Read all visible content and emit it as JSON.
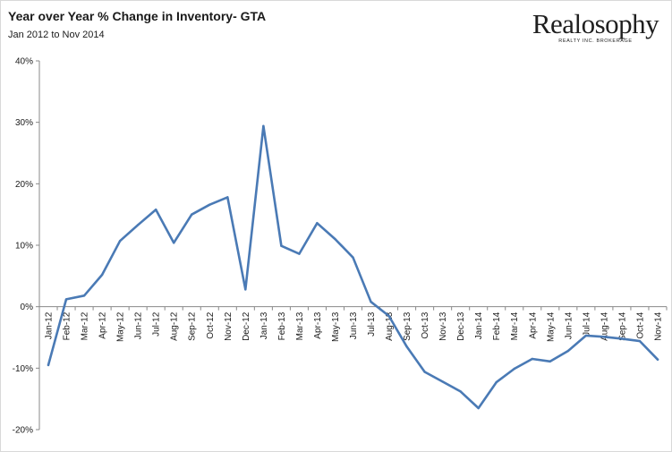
{
  "header": {
    "title": "Year over Year % Change in Inventory- GTA",
    "subtitle": "Jan 2012 to Nov 2014"
  },
  "logo": {
    "word": "Realosophy",
    "tagline": "REALTY INC. BROKERAGE"
  },
  "colors": {
    "line": "#4a7ab5",
    "axis": "#888888",
    "tick": "#1a1a1a"
  },
  "chart_data": {
    "type": "line",
    "title": "Year over Year % Change in Inventory- GTA",
    "subtitle": "Jan 2012 to Nov 2014",
    "xlabel": "",
    "ylabel": "",
    "ylim": [
      -20,
      40
    ],
    "yticks": [
      "40%",
      "30%",
      "20%",
      "10%",
      "0%",
      "-10%",
      "-20%"
    ],
    "grid": false,
    "legend": "none",
    "categories": [
      "Jan-12",
      "Feb-12",
      "Mar-12",
      "Apr-12",
      "May-12",
      "Jun-12",
      "Jul-12",
      "Aug-12",
      "Sep-12",
      "Oct-12",
      "Nov-12",
      "Dec-12",
      "Jan-13",
      "Feb-13",
      "Mar-13",
      "Apr-13",
      "May-13",
      "Jun-13",
      "Jul-13",
      "Aug-13",
      "Sep-13",
      "Oct-13",
      "Nov-13",
      "Dec-13",
      "Jan-14",
      "Feb-14",
      "Mar-14",
      "Apr-14",
      "May-14",
      "Jun-14",
      "Jul-14",
      "Aug-14",
      "Sep-14",
      "Oct-14",
      "Nov-14"
    ],
    "series": [
      {
        "values": [
          -9.5,
          1.2,
          1.8,
          5.2,
          10.7,
          13.3,
          15.8,
          10.4,
          15.0,
          16.6,
          17.8,
          2.8,
          29.4,
          9.9,
          8.6,
          13.6,
          11.0,
          8.0,
          0.8,
          -1.5,
          -6.5,
          -10.6,
          -12.2,
          -13.8,
          -16.5,
          -12.3,
          -10.1,
          -8.5,
          -8.9,
          -7.2,
          -4.7,
          -4.9,
          -5.2,
          -5.6,
          -8.6
        ]
      }
    ]
  }
}
